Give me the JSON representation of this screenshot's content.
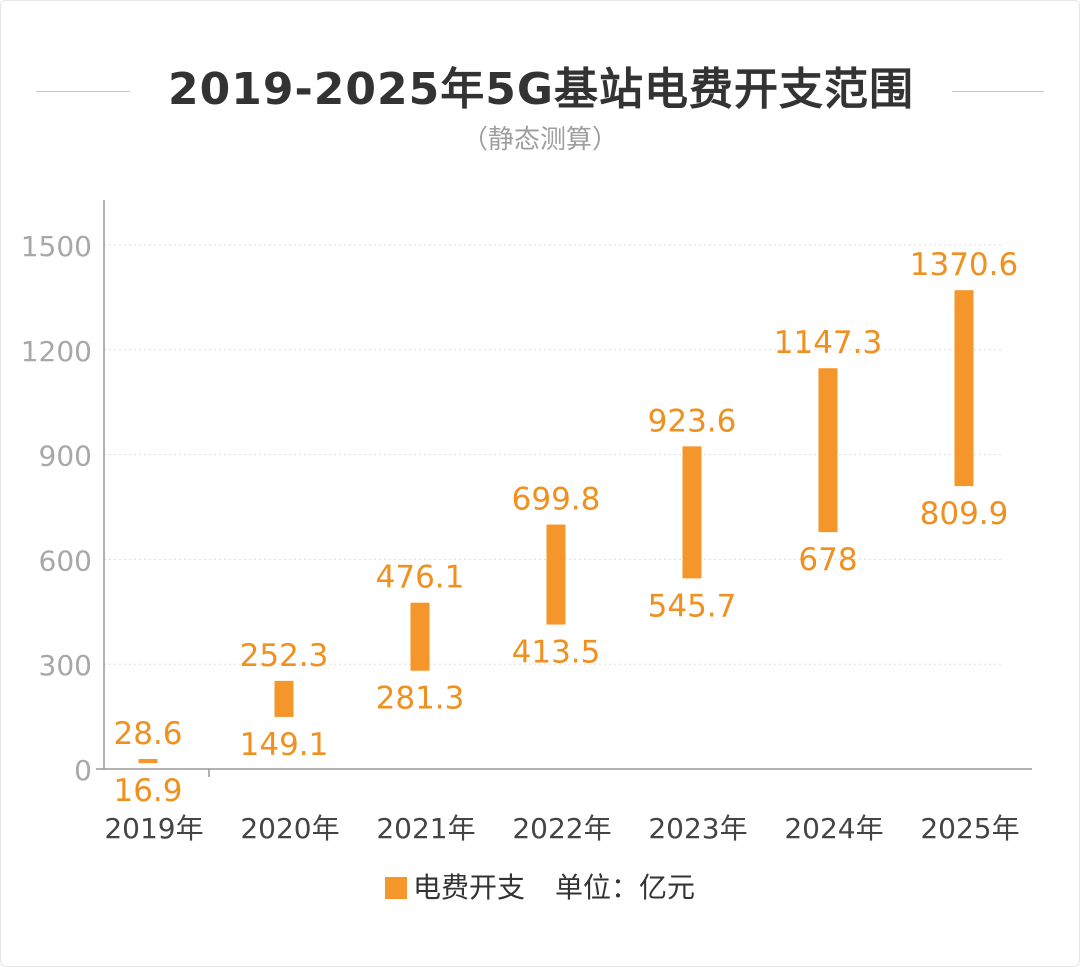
{
  "title": "2019-2025年5G基站电费开支范围",
  "subtitle": "（静态测算）",
  "legend": {
    "series_label": "电费开支",
    "unit_label": "单位：亿元"
  },
  "colors": {
    "bar": "#F5962A",
    "label": "#F0901E",
    "axis": "#999999",
    "tick_text": "#A8A8A8",
    "category_text": "#444444",
    "grid": "#DDDDDD"
  },
  "chart_data": {
    "type": "bar",
    "subtype": "floating-range",
    "categories": [
      "2019年",
      "2020年",
      "2021年",
      "2022年",
      "2023年",
      "2024年",
      "2025年"
    ],
    "series": [
      {
        "name": "电费开支",
        "low": [
          16.9,
          149.1,
          281.3,
          413.5,
          545.7,
          678,
          809.9
        ],
        "high": [
          28.6,
          252.3,
          476.1,
          699.8,
          923.6,
          1147.3,
          1370.6
        ]
      }
    ],
    "data_labels_low": [
      "16.9",
      "149.1",
      "281.3",
      "413.5",
      "545.7",
      "678",
      "809.9"
    ],
    "data_labels_high": [
      "28.6",
      "252.3",
      "476.1",
      "699.8",
      "923.6",
      "1147.3",
      "1370.6"
    ],
    "y_ticks": [
      0,
      300,
      600,
      900,
      1200,
      1500
    ],
    "ylim": [
      0,
      1600
    ],
    "grid": true,
    "grid_style": "dotted",
    "legend_position": "bottom-center",
    "unit": "亿元"
  }
}
